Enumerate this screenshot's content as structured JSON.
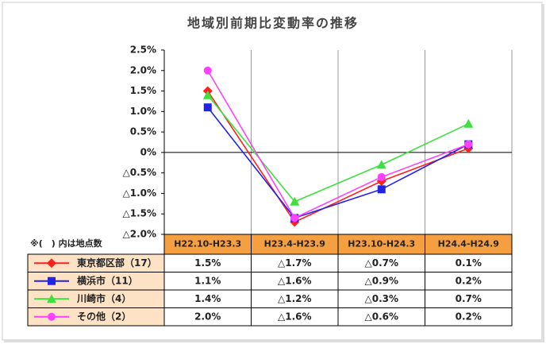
{
  "chart_data": {
    "type": "line",
    "title": "地域別前期比変動率の推移",
    "note": "※(　) 内は地点数",
    "categories": [
      "H22.10-H23.3",
      "H23.4-H23.9",
      "H23.10-H24.3",
      "H24.4-H24.9"
    ],
    "ylim": [
      -2.0,
      2.5
    ],
    "yticks": [
      {
        "value": 2.5,
        "label": "2.5%"
      },
      {
        "value": 2.0,
        "label": "2.0%"
      },
      {
        "value": 1.5,
        "label": "1.5%"
      },
      {
        "value": 1.0,
        "label": "1.0%"
      },
      {
        "value": 0.5,
        "label": "0.5%"
      },
      {
        "value": 0,
        "label": "0%"
      },
      {
        "value": -0.5,
        "label": "△0.5%"
      },
      {
        "value": -1.0,
        "label": "△1.0%"
      },
      {
        "value": -1.5,
        "label": "△1.5%"
      },
      {
        "value": -2.0,
        "label": "△2.0%"
      }
    ],
    "series": [
      {
        "name": "東京都区部（17）",
        "color": "#ff2020",
        "marker": "diamond",
        "values": [
          1.5,
          -1.7,
          -0.7,
          0.1
        ],
        "value_labels": [
          "1.5%",
          "△1.7%",
          "△0.7%",
          "0.1%"
        ]
      },
      {
        "name": "横浜市（11）",
        "color": "#2323e6",
        "marker": "square",
        "values": [
          1.1,
          -1.6,
          -0.9,
          0.2
        ],
        "value_labels": [
          "1.1%",
          "△1.6%",
          "△0.9%",
          "0.2%"
        ]
      },
      {
        "name": "川崎市（4）",
        "color": "#3ee03e",
        "marker": "triangle",
        "values": [
          1.4,
          -1.2,
          -0.3,
          0.7
        ],
        "value_labels": [
          "1.4%",
          "△1.2%",
          "△0.3%",
          "0.7%"
        ]
      },
      {
        "name": "その他（2）",
        "color": "#ff40ff",
        "marker": "circle",
        "values": [
          2.0,
          -1.6,
          -0.6,
          0.2
        ],
        "value_labels": [
          "2.0%",
          "△1.6%",
          "△0.6%",
          "0.2%"
        ]
      }
    ]
  }
}
